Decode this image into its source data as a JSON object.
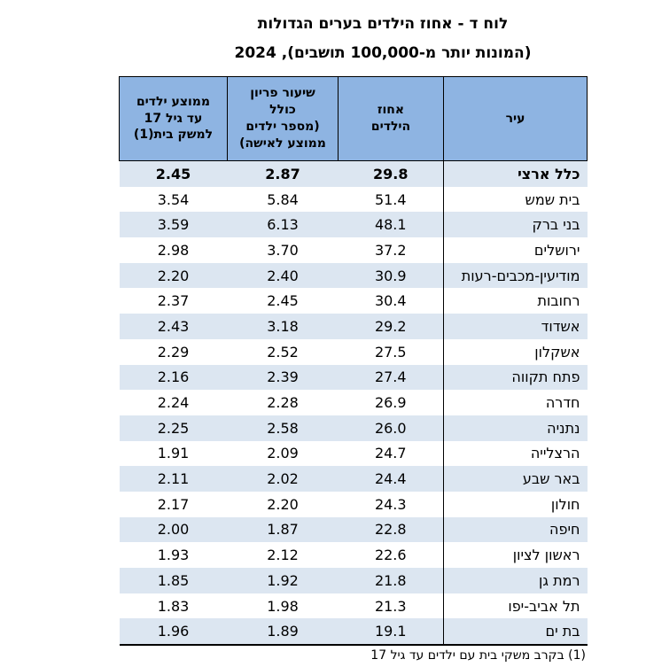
{
  "page": {
    "title": "לוח ד - אחוז הילדים בערים הגדולות",
    "subtitle": "(המונות יותר מ-100,000 תושבים), 2024",
    "footnote": "(1) בקרב משקי בית עם ילדים עד גיל 17"
  },
  "table": {
    "columns": [
      {
        "key": "city",
        "label": "עיר"
      },
      {
        "key": "pct",
        "label": "אחוז\nהילדים"
      },
      {
        "key": "tfr",
        "label": "שיעור פריון\nכולל\n(מספר ילדים\nממוצע לאישה)"
      },
      {
        "key": "avg",
        "label": "ממוצע ילדים\nעד גיל 17\nלמשק בית(1)"
      }
    ],
    "rows": [
      {
        "city": "כלל ארצי",
        "pct": "29.8",
        "tfr": "2.87",
        "avg": "2.45",
        "bold": true
      },
      {
        "city": "בית שמש",
        "pct": "51.4",
        "tfr": "5.84",
        "avg": "3.54",
        "bold": false
      },
      {
        "city": "בני ברק",
        "pct": "48.1",
        "tfr": "6.13",
        "avg": "3.59",
        "bold": false
      },
      {
        "city": "ירושלים",
        "pct": "37.2",
        "tfr": "3.70",
        "avg": "2.98",
        "bold": false
      },
      {
        "city": "מודיעין-מכבים-רעות",
        "pct": "30.9",
        "tfr": "2.40",
        "avg": "2.20",
        "bold": false
      },
      {
        "city": "רחובות",
        "pct": "30.4",
        "tfr": "2.45",
        "avg": "2.37",
        "bold": false
      },
      {
        "city": "אשדוד",
        "pct": "29.2",
        "tfr": "3.18",
        "avg": "2.43",
        "bold": false
      },
      {
        "city": "אשקלון",
        "pct": "27.5",
        "tfr": "2.52",
        "avg": "2.29",
        "bold": false
      },
      {
        "city": "פתח תקווה",
        "pct": "27.4",
        "tfr": "2.39",
        "avg": "2.16",
        "bold": false
      },
      {
        "city": "חדרה",
        "pct": "26.9",
        "tfr": "2.28",
        "avg": "2.24",
        "bold": false
      },
      {
        "city": "נתניה",
        "pct": "26.0",
        "tfr": "2.58",
        "avg": "2.25",
        "bold": false
      },
      {
        "city": "הרצלייה",
        "pct": "24.7",
        "tfr": "2.09",
        "avg": "1.91",
        "bold": false
      },
      {
        "city": "באר שבע",
        "pct": "24.4",
        "tfr": "2.02",
        "avg": "2.11",
        "bold": false
      },
      {
        "city": "חולון",
        "pct": "24.3",
        "tfr": "2.20",
        "avg": "2.17",
        "bold": false
      },
      {
        "city": "חיפה",
        "pct": "22.8",
        "tfr": "1.87",
        "avg": "2.00",
        "bold": false
      },
      {
        "city": "ראשון לציון",
        "pct": "22.6",
        "tfr": "2.12",
        "avg": "1.93",
        "bold": false
      },
      {
        "city": "רמת גן",
        "pct": "21.8",
        "tfr": "1.92",
        "avg": "1.85",
        "bold": false
      },
      {
        "city": "תל אביב-יפו",
        "pct": "21.3",
        "tfr": "1.98",
        "avg": "1.83",
        "bold": false
      },
      {
        "city": "בת ים",
        "pct": "19.1",
        "tfr": "1.89",
        "avg": "1.96",
        "bold": false
      }
    ]
  },
  "colors": {
    "header_bg": "#8EB4E2",
    "row_alt_bg": "#DCE6F1",
    "border": "#000000",
    "bottom_bar": "#8A8A8A"
  }
}
